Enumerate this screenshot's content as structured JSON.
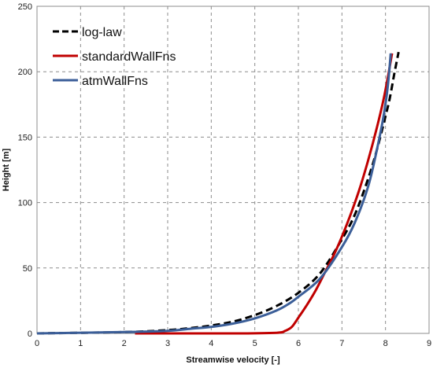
{
  "chart_data": {
    "type": "line",
    "xlabel": "Streamwise velocity [-]",
    "ylabel": "Height [m]",
    "xlim": [
      0,
      9
    ],
    "ylim": [
      0,
      250
    ],
    "xticks": [
      0,
      1,
      2,
      3,
      4,
      5,
      6,
      7,
      8,
      9
    ],
    "yticks": [
      0,
      50,
      100,
      150,
      200,
      250
    ],
    "grid": true,
    "legend_position": "top-left",
    "series": [
      {
        "name": "log-law",
        "color": "#000000",
        "dash": "dashed",
        "x": [
          0,
          2.0,
          3.0,
          3.5,
          4.0,
          4.5,
          5.0,
          5.5,
          6.0,
          6.5,
          7.0,
          7.3,
          7.6,
          7.8,
          8.0,
          8.1,
          8.2,
          8.3
        ],
        "y": [
          0,
          1.0,
          2.5,
          4.0,
          6.0,
          9.0,
          14.0,
          21.0,
          31.0,
          46.0,
          72.0,
          91.0,
          118.0,
          140.0,
          166.0,
          180.0,
          198.0,
          215.0
        ]
      },
      {
        "name": "standardWallFns",
        "color": "#c00000",
        "dash": "solid",
        "x": [
          2.25,
          4.5,
          5.5,
          5.7,
          5.85,
          6.0,
          6.2,
          6.4,
          6.6,
          6.8,
          7.0,
          7.2,
          7.4,
          7.6,
          7.8,
          7.95,
          8.05,
          8.15
        ],
        "y": [
          0,
          0,
          0.5,
          2.0,
          5.0,
          12.0,
          22.0,
          33.0,
          46.0,
          59.0,
          74.0,
          91.0,
          110.0,
          132.0,
          157.0,
          178.0,
          195.0,
          214.0
        ]
      },
      {
        "name": "atmWallFns",
        "color": "#3b5e98",
        "dash": "solid",
        "x": [
          0,
          2.0,
          3.0,
          3.5,
          4.0,
          4.5,
          5.0,
          5.5,
          5.8,
          6.0,
          6.5,
          7.0,
          7.3,
          7.6,
          7.8,
          7.95,
          8.05,
          8.12
        ],
        "y": [
          0,
          1.0,
          2.0,
          3.5,
          5.0,
          7.5,
          11.5,
          17.5,
          23.0,
          28.0,
          42.0,
          66.0,
          85.0,
          112.0,
          140.0,
          165.0,
          188.0,
          214.0
        ]
      }
    ]
  }
}
